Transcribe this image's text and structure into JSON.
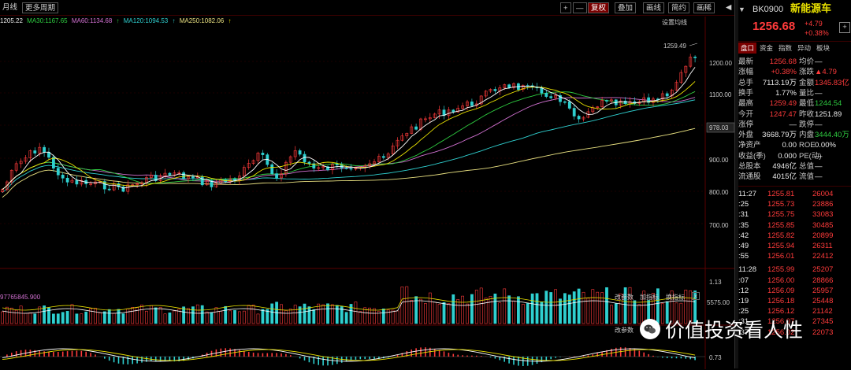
{
  "toolbar": {
    "left_tab": "月线",
    "more_period": "更多周期",
    "add": "+",
    "minus": "—",
    "fuquan": "复权",
    "diejia": "叠加",
    "huaxian": "画线",
    "jianyue": "简约",
    "huitu_prev": "画稀",
    "nav": "◀"
  },
  "legend": {
    "ma5": "1205.22",
    "ma30": "MA30:1167.65",
    "ma60": "MA60:1134.68",
    "ma120": "MA120:1094.53",
    "ma250": "MA250:1082.06",
    "arrow": "↑"
  },
  "settings_label": "设置均线",
  "price_axis": [
    "1259.49",
    "1200.00",
    "1100.00",
    "978.03",
    "900.00",
    "800.00",
    "700.00"
  ],
  "vol_legend": "97765845.900",
  "vol_axis": [
    "1.13",
    "5575.00"
  ],
  "macd_axis": [
    "0.73"
  ],
  "panel_btns": {
    "gaicanshu": "改参数",
    "jia": "加指标",
    "huan": "换指标"
  },
  "colors": {
    "up": "#ff3b3b",
    "down": "#2fd0d0",
    "ma5": "#ffffff",
    "ma10": "#e8e000",
    "ma30": "#2ecc40",
    "ma60": "#d070d0",
    "ma120": "#2fd0d0",
    "ma250": "#e8e080"
  },
  "quote": {
    "code": "BK0900",
    "name": "新能源车",
    "price": "1256.68",
    "chg": "+4.79",
    "pct": "+0.38%"
  },
  "tabs": [
    "盘口",
    "资金",
    "指数",
    "异动",
    "板块"
  ],
  "stats": [
    [
      "最新",
      "1256.68",
      "均价",
      "—"
    ],
    [
      "涨幅",
      "+0.38%",
      "涨跌",
      "▲4.79"
    ],
    [
      "总手",
      "7113.19万",
      "金额",
      "1345.83亿"
    ],
    [
      "换手",
      "1.77%",
      "量比",
      "—"
    ],
    [
      "最高",
      "1259.49",
      "最低",
      "1244.54"
    ],
    [
      "今开",
      "1247.47",
      "昨收",
      "1251.89"
    ],
    [
      "涨停",
      "—",
      "跌停",
      "—"
    ],
    [
      "外盘",
      "3668.79万",
      "内盘",
      "3444.40万"
    ],
    [
      "净资产",
      "0.00",
      "ROE",
      "0.00%"
    ],
    [
      "收益(季)",
      "0.000",
      "PE(动)",
      "—"
    ],
    [
      "总股本",
      "4946亿",
      "总值",
      "—"
    ],
    [
      "流通股",
      "4015亿",
      "流值",
      "—"
    ]
  ],
  "ticks": [
    [
      "11:27",
      "1255.81",
      "26004"
    ],
    [
      ":25",
      "1255.73",
      "23886"
    ],
    [
      ":31",
      "1255.75",
      "33083"
    ],
    [
      ":35",
      "1255.85",
      "30485"
    ],
    [
      ":42",
      "1255.82",
      "20899"
    ],
    [
      ":49",
      "1255.94",
      "26311"
    ],
    [
      ":55",
      "1256.01",
      "22412"
    ],
    [
      "11:28",
      "1255.99",
      "25207"
    ],
    [
      ":07",
      "1256.00",
      "28866"
    ],
    [
      ":12",
      "1256.09",
      "25957"
    ],
    [
      ":19",
      "1256.18",
      "25448"
    ],
    [
      ":25",
      "1256.12",
      "21142"
    ],
    [
      ":31",
      "1256.07",
      "27345"
    ],
    [
      ":37",
      "1256.02",
      "22073"
    ]
  ],
  "watermark": "价值投资看人性"
}
